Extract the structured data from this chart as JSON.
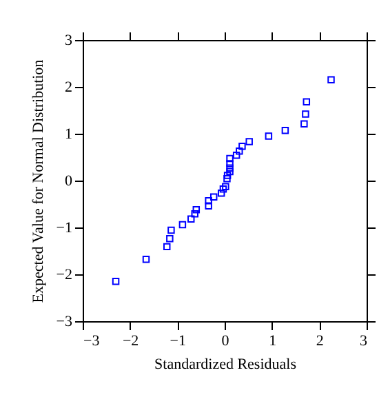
{
  "chart_data": {
    "type": "scatter",
    "xlabel": "Standardized Residuals",
    "ylabel": "Expected Value for Normal Distribution",
    "xlim": [
      -3,
      3
    ],
    "ylim": [
      -3,
      3
    ],
    "xticks": [
      -3,
      -2,
      -1,
      0,
      1,
      2,
      3
    ],
    "yticks": [
      -3,
      -2,
      -1,
      0,
      1,
      2,
      3
    ],
    "grid": false,
    "legend": false,
    "marker": "square",
    "series": [
      {
        "color": "#0000ff",
        "x": [
          2.25,
          1.73,
          1.71,
          1.68,
          1.28,
          0.93,
          0.52,
          0.37,
          0.31,
          0.25,
          0.11,
          0.11,
          0.11,
          0.11,
          0.06,
          0.05,
          0.02,
          -0.03,
          -0.07,
          -0.23,
          -0.34,
          -0.34,
          -0.6,
          -0.63,
          -0.71,
          -0.89,
          -1.13,
          -1.16,
          -1.22,
          -1.66,
          -2.3
        ],
        "values": [
          2.15,
          1.68,
          1.42,
          1.21,
          1.07,
          0.95,
          0.83,
          0.73,
          0.63,
          0.54,
          0.47,
          0.36,
          0.27,
          0.19,
          0.11,
          0.04,
          -0.13,
          -0.18,
          -0.27,
          -0.35,
          -0.43,
          -0.54,
          -0.62,
          -0.71,
          -0.82,
          -0.94,
          -1.06,
          -1.24,
          -1.41,
          -1.68,
          -2.15
        ]
      }
    ]
  }
}
